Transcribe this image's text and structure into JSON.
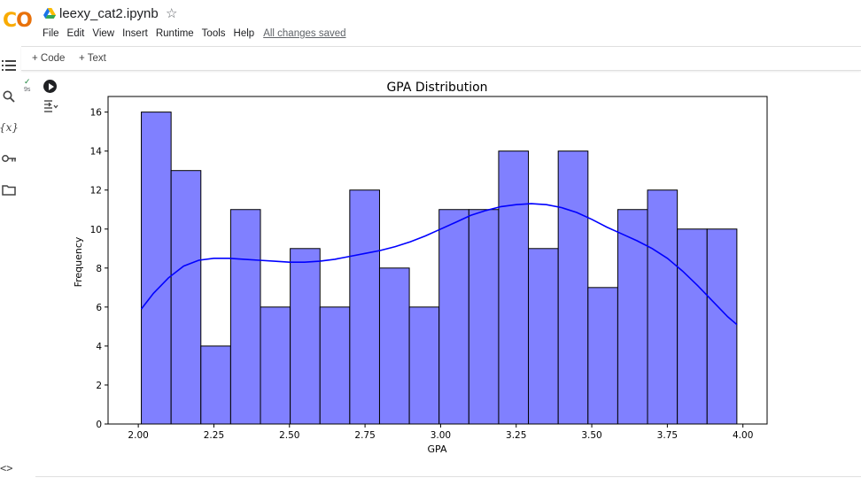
{
  "app": {
    "logo_part1": "C",
    "logo_part2": "O",
    "filename": "leexy_cat2.ipynb",
    "star_icon": "☆",
    "saved_status": "All changes saved"
  },
  "menu": [
    "File",
    "Edit",
    "View",
    "Insert",
    "Runtime",
    "Tools",
    "Help"
  ],
  "toolbar": {
    "code_label": "+ Code",
    "text_label": "+ Text"
  },
  "sidebar": {
    "icons": [
      "table-of-contents-icon",
      "search-icon",
      "variables-icon",
      "secrets-key-icon",
      "files-folder-icon"
    ],
    "variables_glyph": "{x}",
    "bottom_glyph": "<>"
  },
  "cell": {
    "check_glyph": "✓",
    "exec_time": "9s"
  },
  "colors": {
    "bar_fill": "#8080ff",
    "bar_edge": "#000000",
    "kde_line": "#0000ff",
    "logo_yellow": "#f9ab00",
    "logo_orange": "#e8710a"
  },
  "chart_data": {
    "type": "bar",
    "title": "GPA Distribution",
    "xlabel": "GPA",
    "ylabel": "Frequency",
    "xlim": [
      1.9,
      4.08
    ],
    "ylim": [
      0,
      16.8
    ],
    "xticks": [
      2.0,
      2.25,
      2.5,
      2.75,
      3.0,
      3.25,
      3.5,
      3.75,
      4.0
    ],
    "xtick_labels": [
      "2.00",
      "2.25",
      "2.50",
      "2.75",
      "3.00",
      "3.25",
      "3.50",
      "3.75",
      "4.00"
    ],
    "yticks": [
      0,
      2,
      4,
      6,
      8,
      10,
      12,
      14,
      16
    ],
    "ytick_labels": [
      "0",
      "2",
      "4",
      "6",
      "8",
      "10",
      "12",
      "14",
      "16"
    ],
    "bin_edges": [
      2.01,
      2.1085,
      2.207,
      2.3055,
      2.404,
      2.5025,
      2.601,
      2.6995,
      2.798,
      2.8965,
      2.995,
      3.0935,
      3.192,
      3.2905,
      3.389,
      3.4875,
      3.586,
      3.6845,
      3.783,
      3.8815,
      3.98
    ],
    "values": [
      16,
      13,
      4,
      11,
      6,
      9,
      6,
      12,
      8,
      6,
      11,
      11,
      14,
      9,
      14,
      7,
      11,
      12,
      10,
      10
    ],
    "kde": {
      "name": "",
      "x": [
        2.01,
        2.05,
        2.1,
        2.15,
        2.2,
        2.25,
        2.3,
        2.35,
        2.4,
        2.45,
        2.5,
        2.55,
        2.6,
        2.65,
        2.7,
        2.75,
        2.8,
        2.85,
        2.9,
        2.95,
        3.0,
        3.05,
        3.1,
        3.15,
        3.2,
        3.25,
        3.3,
        3.35,
        3.4,
        3.45,
        3.5,
        3.55,
        3.6,
        3.65,
        3.7,
        3.75,
        3.8,
        3.85,
        3.9,
        3.95,
        3.98
      ],
      "y": [
        5.9,
        6.7,
        7.5,
        8.1,
        8.4,
        8.5,
        8.5,
        8.45,
        8.4,
        8.35,
        8.3,
        8.3,
        8.35,
        8.45,
        8.6,
        8.75,
        8.9,
        9.1,
        9.35,
        9.65,
        10.0,
        10.35,
        10.7,
        10.95,
        11.15,
        11.25,
        11.3,
        11.25,
        11.1,
        10.85,
        10.5,
        10.1,
        9.75,
        9.4,
        9.0,
        8.5,
        7.85,
        7.1,
        6.3,
        5.5,
        5.1
      ]
    }
  }
}
